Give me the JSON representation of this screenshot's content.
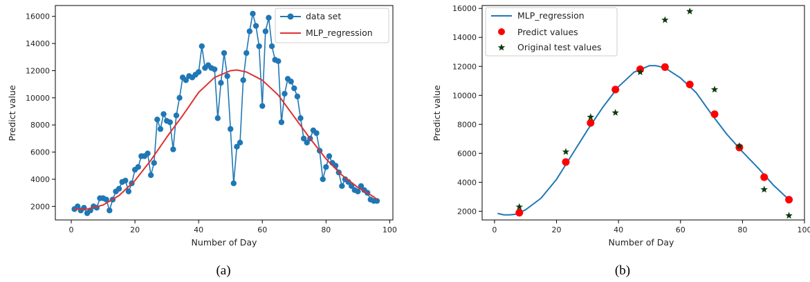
{
  "chart_data": [
    {
      "type": "line",
      "caption": "(a)",
      "xlabel": "Number of Day",
      "ylabel": "Predict value",
      "xlim": [
        -5,
        101
      ],
      "ylim": [
        1000,
        16800
      ],
      "xticks": [
        0,
        20,
        40,
        60,
        80,
        100
      ],
      "yticks": [
        2000,
        4000,
        6000,
        8000,
        10000,
        12000,
        14000,
        16000
      ],
      "grid": false,
      "legend_placement": "top-right",
      "colors": {
        "data": "#1f77b4",
        "model": "#e03030"
      },
      "series": [
        {
          "name": "data set",
          "style": "line-markers",
          "x": [
            1,
            2,
            3,
            4,
            5,
            6,
            7,
            8,
            9,
            10,
            11,
            12,
            13,
            14,
            15,
            16,
            17,
            18,
            19,
            20,
            21,
            22,
            23,
            24,
            25,
            26,
            27,
            28,
            29,
            30,
            31,
            32,
            33,
            34,
            35,
            36,
            37,
            38,
            39,
            40,
            41,
            42,
            43,
            44,
            45,
            46,
            47,
            48,
            49,
            50,
            51,
            52,
            53,
            54,
            55,
            56,
            57,
            58,
            59,
            60,
            61,
            62,
            63,
            64,
            65,
            66,
            67,
            68,
            69,
            70,
            71,
            72,
            73,
            74,
            75,
            76,
            77,
            78,
            79,
            80,
            81,
            82,
            83,
            84,
            85,
            86,
            87,
            88,
            89,
            90,
            91,
            92,
            93,
            94,
            95,
            96
          ],
          "y": [
            1800,
            2000,
            1700,
            1900,
            1500,
            1700,
            2000,
            1900,
            2600,
            2600,
            2500,
            1700,
            2500,
            3100,
            3300,
            3800,
            3900,
            3100,
            3700,
            4700,
            4900,
            5700,
            5700,
            5900,
            4300,
            5200,
            8400,
            7700,
            8800,
            8300,
            8200,
            6200,
            8700,
            10000,
            11500,
            11300,
            11600,
            11500,
            11700,
            11900,
            13800,
            12200,
            12400,
            12200,
            12100,
            8500,
            11100,
            13300,
            11600,
            7700,
            3700,
            6400,
            6700,
            11300,
            13300,
            14900,
            16200,
            15300,
            13800,
            9400,
            14900,
            15900,
            13800,
            12800,
            12700,
            8200,
            10300,
            11400,
            11200,
            10700,
            10100,
            8500,
            7000,
            6700,
            7000,
            7600,
            7400,
            6100,
            4000,
            4900,
            5700,
            5200,
            5000,
            4500,
            3500,
            4000,
            3800,
            3500,
            3200,
            3100,
            3500,
            3200,
            3000,
            2500,
            2400,
            2400
          ]
        },
        {
          "name": "MLP_regression",
          "style": "line",
          "x": [
            1,
            5,
            10,
            15,
            20,
            25,
            30,
            35,
            40,
            45,
            50,
            52,
            55,
            60,
            65,
            70,
            75,
            80,
            85,
            90,
            95,
            96
          ],
          "y": [
            1800,
            1800,
            2100,
            2800,
            3900,
            5400,
            7100,
            8700,
            10400,
            11500,
            12000,
            12050,
            11900,
            11300,
            10200,
            8600,
            7000,
            5500,
            4300,
            3400,
            2700,
            2500
          ]
        }
      ]
    },
    {
      "type": "scatter",
      "caption": "(b)",
      "xlabel": "Number of Day",
      "ylabel": "Predict value",
      "xlim": [
        -4,
        100
      ],
      "ylim": [
        1400,
        16200
      ],
      "xticks": [
        0,
        20,
        40,
        60,
        80,
        100
      ],
      "yticks": [
        2000,
        4000,
        6000,
        8000,
        10000,
        12000,
        14000,
        16000
      ],
      "grid": false,
      "legend_placement": "top-left",
      "colors": {
        "curve": "#1f77b4",
        "predict": "#ff0000",
        "original": "#0a3a0a"
      },
      "series": [
        {
          "name": "MLP_regression",
          "style": "line",
          "x": [
            1,
            3,
            5,
            7,
            10,
            15,
            20,
            25,
            30,
            35,
            40,
            45,
            50,
            52,
            55,
            60,
            65,
            70,
            75,
            80,
            85,
            90,
            95
          ],
          "y": [
            1850,
            1750,
            1750,
            1800,
            2100,
            2900,
            4200,
            5900,
            7600,
            9200,
            10600,
            11600,
            12050,
            12050,
            11900,
            11200,
            10200,
            8700,
            7300,
            6100,
            5000,
            3800,
            2800
          ]
        },
        {
          "name": "Predict values",
          "style": "markers-circle",
          "x": [
            8,
            23,
            31,
            39,
            47,
            55,
            63,
            71,
            79,
            87,
            95
          ],
          "y": [
            1900,
            5400,
            8100,
            10400,
            11800,
            11950,
            10750,
            8700,
            6400,
            4350,
            2800
          ]
        },
        {
          "name": "Original test values",
          "style": "markers-star",
          "x": [
            8,
            23,
            31,
            39,
            47,
            55,
            63,
            71,
            79,
            87,
            95
          ],
          "y": [
            2300,
            6100,
            8500,
            8800,
            11600,
            15200,
            15800,
            10400,
            6500,
            3500,
            1700
          ]
        }
      ]
    }
  ]
}
